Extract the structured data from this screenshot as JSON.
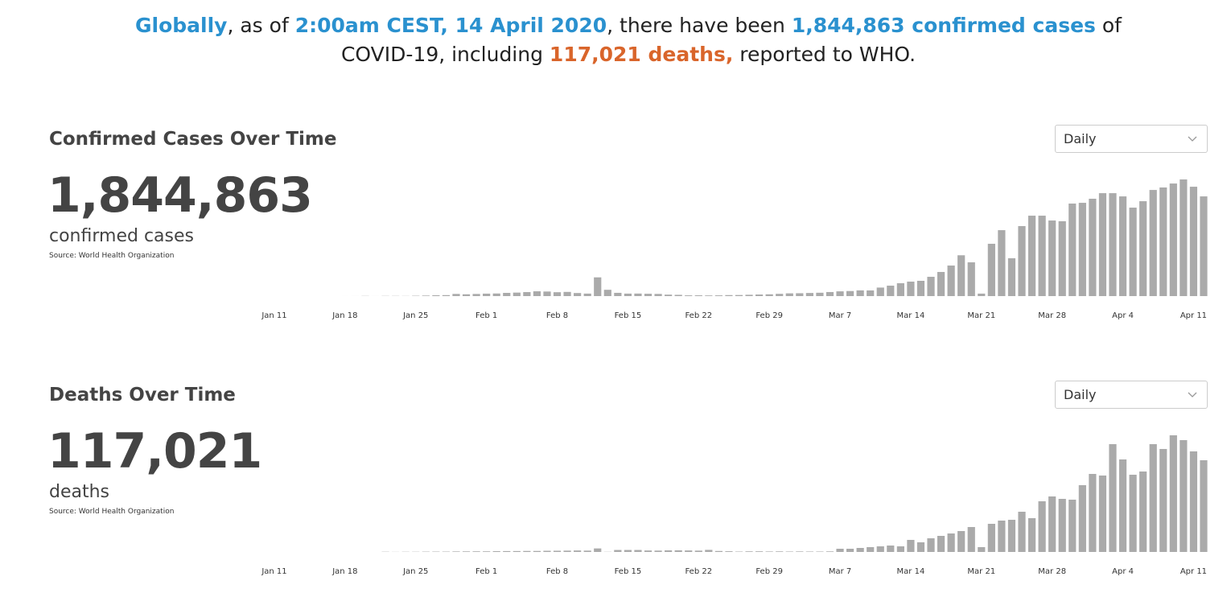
{
  "headline": {
    "parts": [
      {
        "text": "Globally",
        "color": "#2a91cf",
        "bold": true
      },
      {
        "text": ", as of ",
        "color": "#222222",
        "bold": false
      },
      {
        "text": "2:00am CEST, 14 April 2020",
        "color": "#2a91cf",
        "bold": true
      },
      {
        "text": ", there have been ",
        "color": "#222222",
        "bold": false
      },
      {
        "text": "1,844,863 confirmed cases",
        "color": "#2a91cf",
        "bold": true
      },
      {
        "text": " of COVID-19, including ",
        "color": "#222222",
        "bold": false
      },
      {
        "text": "117,021 deaths,",
        "color": "#d9652b",
        "bold": true
      },
      {
        "text": " reported to WHO.",
        "color": "#222222",
        "bold": false
      }
    ]
  },
  "chart_data": [
    {
      "type": "bar",
      "title": "Confirmed Cases Over Time",
      "total": "1,844,863",
      "total_label": "confirmed cases",
      "source": "Source: World Health Organization",
      "dropdown": "Daily",
      "color": "#aaaaaa",
      "categories": [
        "Jan 11",
        null,
        null,
        null,
        null,
        null,
        null,
        "Jan 18",
        null,
        null,
        null,
        null,
        null,
        null,
        "Jan 25",
        null,
        null,
        null,
        null,
        null,
        null,
        "Feb 1",
        null,
        null,
        null,
        null,
        null,
        null,
        "Feb 8",
        null,
        null,
        null,
        null,
        null,
        null,
        "Feb 15",
        null,
        null,
        null,
        null,
        null,
        null,
        "Feb 22",
        null,
        null,
        null,
        null,
        null,
        null,
        "Feb 29",
        null,
        null,
        null,
        null,
        null,
        null,
        "Mar 7",
        null,
        null,
        null,
        null,
        null,
        null,
        "Mar 14",
        null,
        null,
        null,
        null,
        null,
        null,
        "Mar 21",
        null,
        null,
        null,
        null,
        null,
        null,
        "Mar 28",
        null,
        null,
        null,
        null,
        null,
        null,
        "Apr 4",
        null,
        null,
        null,
        null,
        null,
        null,
        "Apr 11",
        null
      ],
      "values": [
        0,
        0,
        0,
        0,
        0,
        0,
        0,
        4,
        17,
        136,
        19,
        151,
        140,
        97,
        259,
        441,
        665,
        787,
        1753,
        1466,
        1739,
        1984,
        2101,
        2590,
        2827,
        3235,
        3884,
        3694,
        3143,
        3385,
        2484,
        2022,
        15152,
        5090,
        2641,
        2009,
        2048,
        1888,
        1749,
        1185,
        1019,
        598,
        628,
        522,
        593,
        806,
        869,
        1068,
        1284,
        1453,
        1825,
        2218,
        2315,
        2516,
        2716,
        3290,
        3848,
        4089,
        4630,
        4589,
        6895,
        8438,
        10400,
        11700,
        12350,
        15600,
        19500,
        24700,
        33000,
        27300,
        2000,
        42300,
        53300,
        30600,
        56600,
        65000,
        65000,
        61100,
        60500,
        74800,
        75400,
        78700,
        83200,
        83200,
        80600,
        71500,
        76700,
        85800,
        87800,
        91000,
        94300,
        88400,
        80600
      ]
    },
    {
      "type": "bar",
      "title": "Deaths Over Time",
      "total": "117,021",
      "total_label": "deaths",
      "source": "Source: World Health Organization",
      "dropdown": "Daily",
      "color": "#aaaaaa",
      "categories": [
        "Jan 11",
        null,
        null,
        null,
        null,
        null,
        null,
        "Jan 18",
        null,
        null,
        null,
        null,
        null,
        null,
        "Jan 25",
        null,
        null,
        null,
        null,
        null,
        null,
        "Feb 1",
        null,
        null,
        null,
        null,
        null,
        null,
        "Feb 8",
        null,
        null,
        null,
        null,
        null,
        null,
        "Feb 15",
        null,
        null,
        null,
        null,
        null,
        null,
        "Feb 22",
        null,
        null,
        null,
        null,
        null,
        null,
        "Feb 29",
        null,
        null,
        null,
        null,
        null,
        null,
        "Mar 7",
        null,
        null,
        null,
        null,
        null,
        null,
        "Mar 14",
        null,
        null,
        null,
        null,
        null,
        null,
        "Mar 21",
        null,
        null,
        null,
        null,
        null,
        null,
        "Mar 28",
        null,
        null,
        null,
        null,
        null,
        null,
        "Apr 4",
        null,
        null,
        null,
        null,
        null,
        null,
        "Apr 11",
        null
      ],
      "values": [
        0,
        0,
        0,
        0,
        0,
        0,
        0,
        0,
        0,
        0,
        0,
        17,
        8,
        15,
        15,
        24,
        26,
        26,
        38,
        43,
        46,
        45,
        57,
        64,
        66,
        73,
        73,
        86,
        89,
        97,
        108,
        97,
        254,
        13,
        143,
        143,
        142,
        106,
        98,
        115,
        118,
        109,
        97,
        150,
        71,
        52,
        29,
        44,
        47,
        35,
        42,
        31,
        38,
        31,
        30,
        41,
        232,
        232,
        290,
        348,
        406,
        464,
        406,
        870,
        696,
        986,
        1160,
        1334,
        1508,
        1798,
        348,
        2030,
        2262,
        2320,
        2900,
        2436,
        3654,
        4002,
        3828,
        3770,
        4814,
        5626,
        5510,
        7772,
        6670,
        5568,
        5800,
        7772,
        7424,
        8410,
        8062,
        7250,
        6612
      ]
    }
  ]
}
